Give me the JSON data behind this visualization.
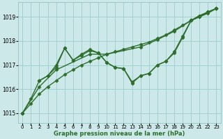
{
  "title": "Graphe pression niveau de la mer (hPa)",
  "background_color": "#cce8e8",
  "grid_color": "#99cccc",
  "line_color": "#2d6e2d",
  "xlim": [
    -0.5,
    23.5
  ],
  "ylim": [
    1014.6,
    1019.6
  ],
  "yticks": [
    1015,
    1016,
    1017,
    1018,
    1019
  ],
  "xticks": [
    0,
    1,
    2,
    3,
    4,
    5,
    6,
    7,
    8,
    9,
    10,
    11,
    12,
    13,
    14,
    15,
    16,
    17,
    18,
    19,
    20,
    21,
    22,
    23
  ],
  "lines": [
    {
      "x": [
        0,
        1,
        2,
        3,
        4,
        5,
        6,
        7,
        8,
        9,
        10,
        11,
        12,
        13,
        14,
        15,
        16,
        17,
        18,
        19,
        20,
        21,
        22,
        23
      ],
      "y": [
        1015.0,
        1015.4,
        1015.8,
        1016.1,
        1016.35,
        1016.6,
        1016.8,
        1017.0,
        1017.15,
        1017.3,
        1017.45,
        1017.55,
        1017.65,
        1017.75,
        1017.85,
        1017.95,
        1018.1,
        1018.25,
        1018.45,
        1018.65,
        1018.85,
        1019.0,
        1019.2,
        1019.35
      ],
      "marker": "D",
      "markersize": 2.5,
      "linewidth": 1.0
    },
    {
      "x": [
        0,
        1,
        2,
        3,
        4,
        5,
        6,
        7,
        8,
        9,
        10,
        11,
        12,
        13,
        14,
        15,
        16,
        17,
        18,
        19,
        20,
        21,
        22,
        23
      ],
      "y": [
        1015.0,
        1015.6,
        1016.35,
        1016.55,
        1016.9,
        1017.7,
        1017.2,
        1017.45,
        1017.65,
        1017.5,
        1017.1,
        1016.9,
        1016.85,
        1016.3,
        1016.55,
        1016.65,
        1017.0,
        1017.15,
        1017.55,
        1018.2,
        1018.85,
        1019.05,
        1019.2,
        1019.35
      ],
      "marker": "D",
      "markersize": 2.5,
      "linewidth": 1.0
    },
    {
      "x": [
        2,
        3,
        4,
        5,
        6,
        7,
        8,
        9,
        10,
        11,
        12,
        13,
        14,
        15,
        16,
        17,
        18,
        19,
        20,
        21,
        22,
        23
      ],
      "y": [
        1016.35,
        1016.55,
        1017.0,
        1017.7,
        1017.2,
        1017.4,
        1017.6,
        1017.5,
        1017.1,
        1016.9,
        1016.85,
        1016.25,
        1016.55,
        1016.65,
        1017.0,
        1017.15,
        1017.5,
        1018.15,
        1018.85,
        1019.0,
        1019.15,
        1019.35
      ],
      "marker": "D",
      "markersize": 2.5,
      "linewidth": 1.0
    },
    {
      "x": [
        0,
        2,
        4,
        8,
        10,
        14,
        16,
        18,
        20,
        21,
        22,
        23
      ],
      "y": [
        1015.0,
        1016.1,
        1016.8,
        1017.45,
        1017.45,
        1017.75,
        1018.05,
        1018.4,
        1018.85,
        1019.05,
        1019.2,
        1019.35
      ],
      "marker": "D",
      "markersize": 2.5,
      "linewidth": 1.0
    }
  ]
}
